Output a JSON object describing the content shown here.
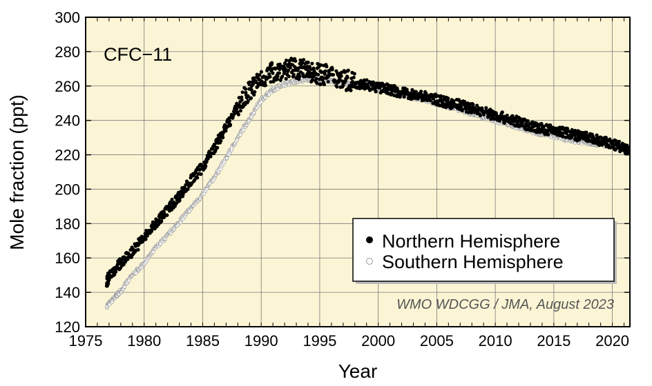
{
  "chart_data": {
    "type": "scatter",
    "title": "CFC−11",
    "xlabel": "Year",
    "ylabel": "Mole fraction (ppt)",
    "xlim": [
      1975,
      2021.5
    ],
    "ylim": [
      120,
      300
    ],
    "xticks": [
      1975,
      1980,
      1985,
      1990,
      1995,
      2000,
      2005,
      2010,
      2015,
      2020
    ],
    "yticks": [
      120,
      140,
      160,
      180,
      200,
      220,
      240,
      260,
      280,
      300
    ],
    "grid": true,
    "background_color": "#fcf5d5",
    "legend_position": "bottom-right",
    "credit": "WMO WDCGG / JMA, August 2023",
    "series": [
      {
        "name": "Northern Hemisphere",
        "marker": "filled-circle",
        "color": "#000000",
        "x": [
          1976.8,
          1977,
          1978,
          1979,
          1980,
          1981,
          1982,
          1983,
          1984,
          1985,
          1986,
          1987,
          1988,
          1989,
          1990,
          1991,
          1992,
          1993,
          1994,
          1995,
          1996,
          1997,
          1998,
          1999,
          2000,
          2001,
          2002,
          2003,
          2004,
          2005,
          2006,
          2007,
          2008,
          2009,
          2010,
          2011,
          2012,
          2013,
          2014,
          2015,
          2016,
          2017,
          2018,
          2019,
          2020,
          2021,
          2021.4
        ],
        "y": [
          145,
          150,
          157,
          164,
          172,
          180,
          188,
          196,
          205,
          213,
          224,
          236,
          248,
          257,
          264,
          268,
          270,
          270,
          269,
          267,
          266,
          264,
          262,
          261,
          259,
          258,
          256,
          255,
          254,
          252,
          250,
          249,
          247,
          245,
          243,
          241,
          239,
          237,
          235,
          234,
          233,
          231,
          230,
          228,
          226,
          224,
          222
        ]
      },
      {
        "name": "Southern Hemisphere",
        "marker": "open-circle",
        "color": "#9a9a9a",
        "x": [
          1976.8,
          1977.5,
          1978,
          1979,
          1980,
          1981,
          1982,
          1983,
          1984,
          1985,
          1986,
          1987,
          1988,
          1989,
          1990,
          1991,
          1992,
          1993,
          1994,
          1995,
          1996,
          1997,
          1998,
          1999,
          2000,
          2001,
          2002,
          2003,
          2004,
          2005,
          2006,
          2007,
          2008,
          2009,
          2010,
          2011,
          2012,
          2013,
          2014,
          2015,
          2016,
          2017,
          2018,
          2019,
          2020,
          2021,
          2021.4
        ],
        "y": [
          132,
          137,
          141,
          150,
          157,
          166,
          173,
          181,
          189,
          197,
          207,
          218,
          230,
          241,
          252,
          258,
          261,
          263,
          264,
          264,
          263,
          262,
          261,
          260,
          259,
          257,
          255,
          253,
          252,
          250,
          248,
          246,
          244,
          242,
          240,
          238,
          236,
          234,
          232,
          231,
          229,
          228,
          227,
          226,
          225,
          223,
          221
        ]
      }
    ]
  }
}
